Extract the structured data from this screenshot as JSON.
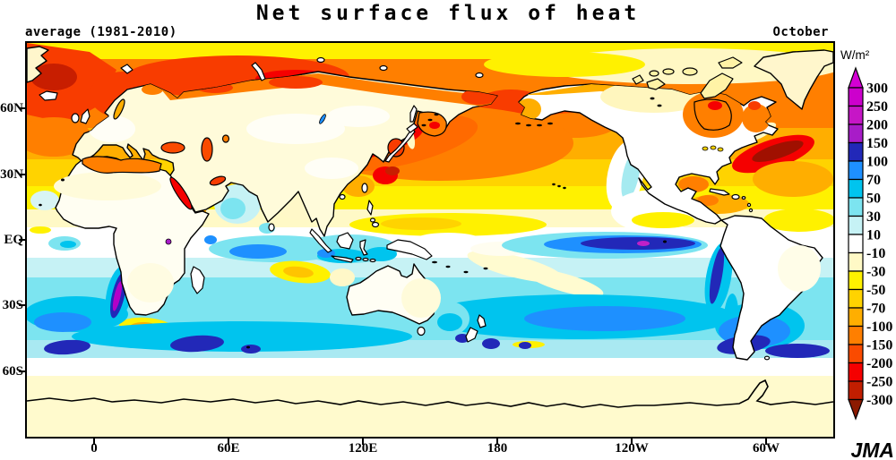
{
  "title": "Net surface flux of heat",
  "period_label": "average (1981-2010)",
  "month_label": "October",
  "logo_text": "JMA",
  "colorbar": {
    "unit": "W/m²",
    "boundary_labels": [
      "300",
      "250",
      "200",
      "150",
      "100",
      "70",
      "50",
      "30",
      "10",
      "-10",
      "-30",
      "-50",
      "-70",
      "-100",
      "-150",
      "-200",
      "-250",
      "-300"
    ],
    "above_max_color": "#D400D4",
    "below_min_color": "#8C1A00",
    "segment_colors": [
      "#CC00CC",
      "#C616C6",
      "#A81CC8",
      "#2228B8",
      "#1E90FF",
      "#00C4EE",
      "#7CE4F0",
      "#C6F2F5",
      "#FFFFFF",
      "#FFF9C6",
      "#FFF100",
      "#FFD300",
      "#FFAE00",
      "#FF7F00",
      "#FA4B00",
      "#F50000",
      "#C21E00"
    ]
  },
  "axes": {
    "lat_labels": [
      "60N",
      "30N",
      "EQ",
      "30S",
      "60S"
    ],
    "lon_labels": [
      "0",
      "60E",
      "120E",
      "180",
      "120W",
      "60W"
    ]
  },
  "chart_data": {
    "type": "heatmap",
    "title": "Net surface flux of heat",
    "statistic": "average (1981-2010)",
    "month": "October",
    "unit": "W/m²",
    "projection": "equirectangular world map, longitudes 30W eastward to 30W, latitudes 90N-90S",
    "scale_boundaries": [
      300,
      250,
      200,
      150,
      100,
      70,
      50,
      30,
      10,
      -10,
      -30,
      -50,
      -70,
      -100,
      -150,
      -200,
      -250,
      -300
    ],
    "legend_position": "right",
    "notable_features": [
      {
        "region": "Gulf Stream off eastern North America",
        "value_wm2": -250
      },
      {
        "region": "Kuroshio region east of Japan",
        "value_wm2": -250
      },
      {
        "region": "Norwegian / Barents / Kara Seas",
        "value_wm2": -180
      },
      {
        "region": "North Pacific mid-latitudes",
        "value_wm2": -120
      },
      {
        "region": "Mediterranean, Black and Caspian Seas",
        "value_wm2": -120
      },
      {
        "region": "Red Sea and Persian Gulf",
        "value_wm2": -180
      },
      {
        "region": "Hudson Bay and Labrador Sea",
        "value_wm2": -130
      },
      {
        "region": "Tropical band north of equator (ITCZ), west-central Pacific",
        "value_wm2": -40
      },
      {
        "region": "Most land areas",
        "value_wm2": -15
      },
      {
        "region": "Equatorial eastern Pacific cold tongue",
        "value_wm2": 120
      },
      {
        "region": "Core spot in eastern equatorial Pacific",
        "value_wm2": 200
      },
      {
        "region": "Peru-Chile coastal upwelling strip",
        "value_wm2": 120
      },
      {
        "region": "Benguela coastal strip off southwest Africa",
        "value_wm2": 170
      },
      {
        "region": "Argentine shelf / Patagonian coast",
        "value_wm2": 120
      },
      {
        "region": "Southern Ocean 40S-55S belt",
        "value_wm2": 50
      },
      {
        "region": "Agulhas region south of Africa",
        "value_wm2": -50
      },
      {
        "region": "Central South Indian Ocean patch",
        "value_wm2": -45
      },
      {
        "region": "Antarctic coastal band",
        "value_wm2": -20
      }
    ]
  }
}
